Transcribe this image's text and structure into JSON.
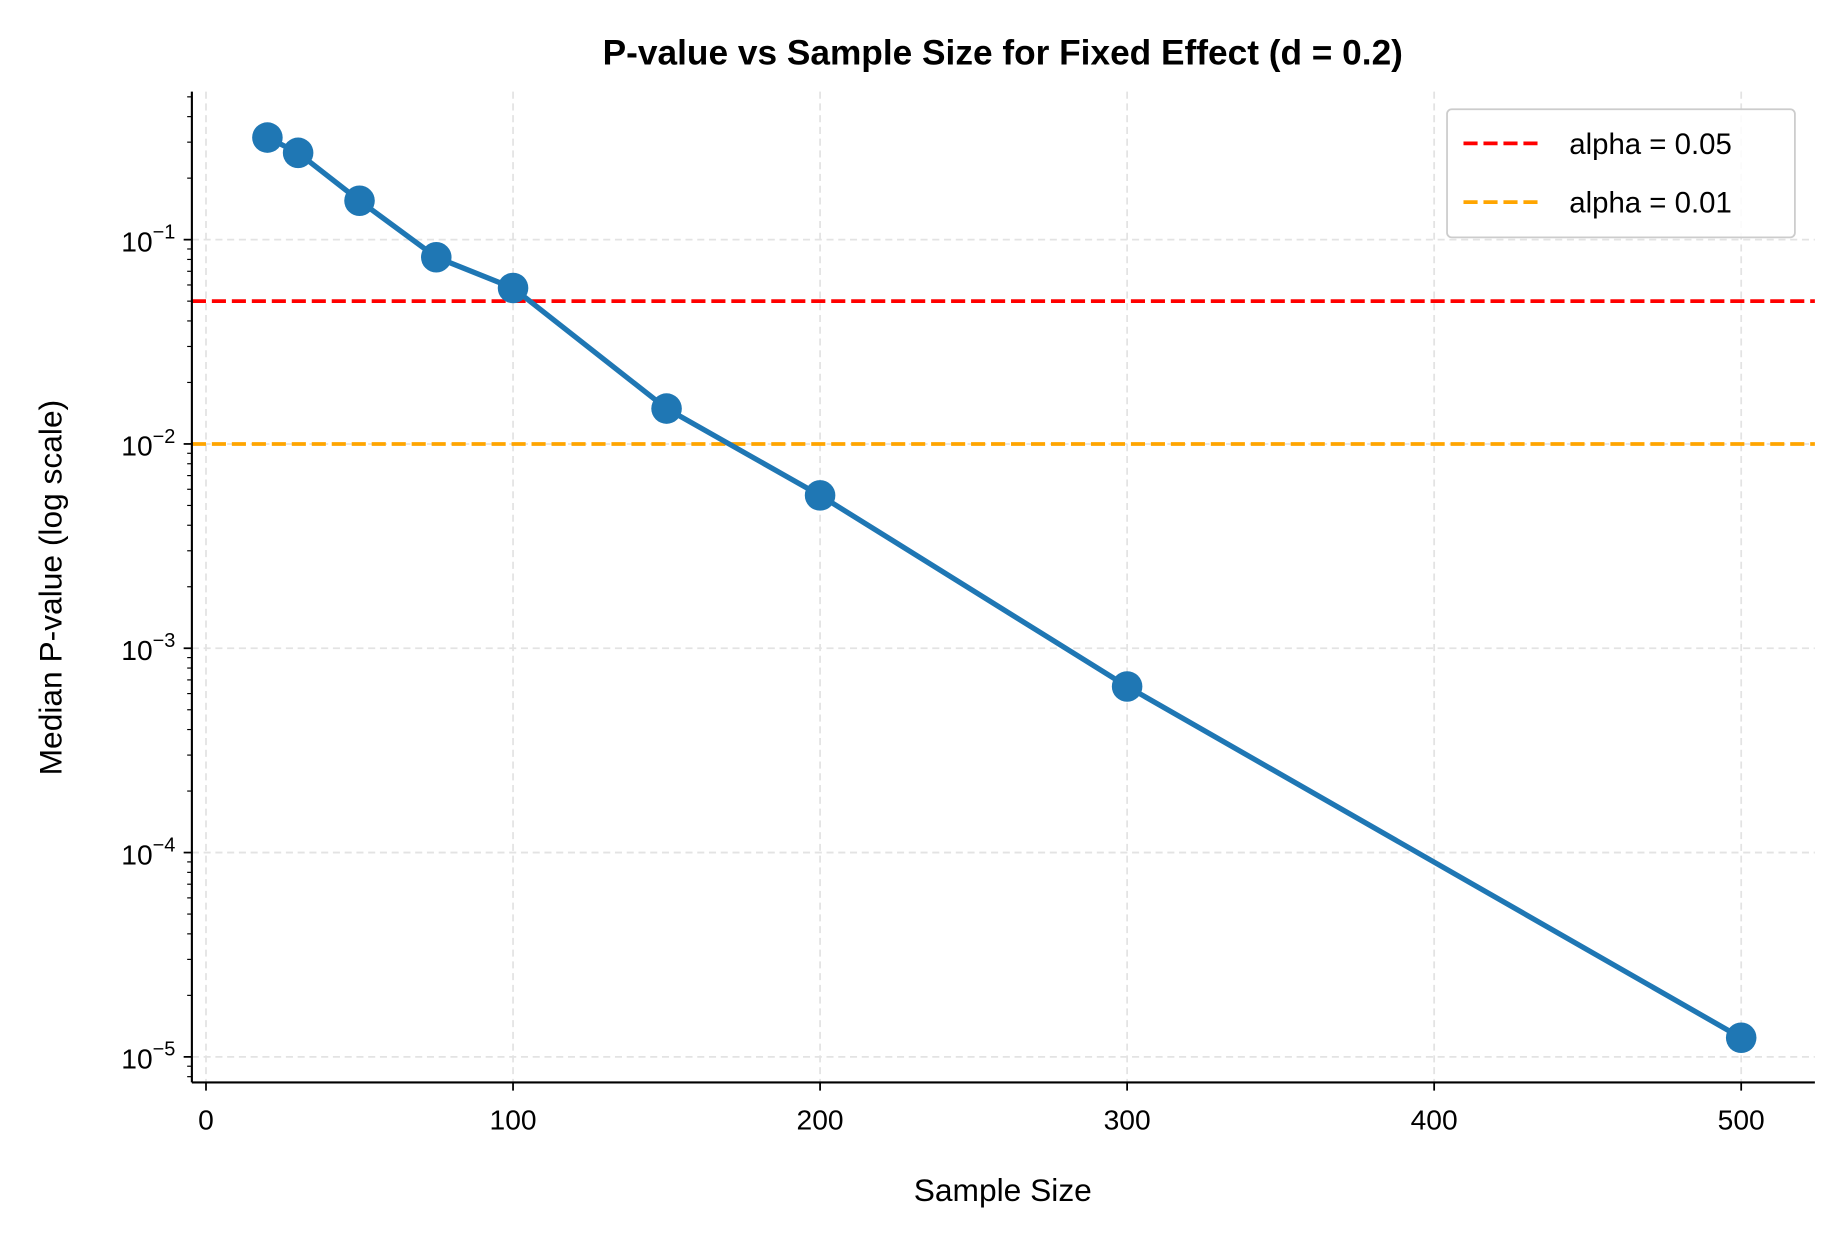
{
  "chart_data": {
    "type": "line",
    "title": "P-value vs Sample Size for Fixed Effect (d = 0.2)",
    "xlabel": "Sample Size",
    "ylabel": "Median P-value (log scale)",
    "xlim": [
      -4.6,
      524
    ],
    "ylim": [
      7.5e-06,
      0.53
    ],
    "yscale": "log",
    "grid": true,
    "legend_position": "top-right",
    "x_ticks": [
      0,
      100,
      200,
      300,
      400,
      500
    ],
    "x_tick_labels": [
      "0",
      "100",
      "200",
      "300",
      "400",
      "500"
    ],
    "y_ticks": [
      0.1,
      0.01,
      0.001,
      0.0001,
      1e-05
    ],
    "y_tick_labels": [
      {
        "base": "10",
        "exp": "−1"
      },
      {
        "base": "10",
        "exp": "−2"
      },
      {
        "base": "10",
        "exp": "−3"
      },
      {
        "base": "10",
        "exp": "−4"
      },
      {
        "base": "10",
        "exp": "−5"
      }
    ],
    "series": [
      {
        "color": "#1f77b4",
        "marker": "circle",
        "x": [
          20,
          30,
          50,
          75,
          100,
          150,
          200,
          300,
          500
        ],
        "y": [
          0.316,
          0.266,
          0.155,
          0.082,
          0.058,
          0.0149,
          0.0056,
          0.00065,
          1.24e-05
        ]
      }
    ],
    "reference_lines": [
      {
        "name": "alpha = 0.05",
        "y": 0.05,
        "color": "#ff0000",
        "style": "dashed"
      },
      {
        "name": "alpha = 0.01",
        "y": 0.01,
        "color": "#ffa500",
        "style": "dashed"
      }
    ]
  }
}
